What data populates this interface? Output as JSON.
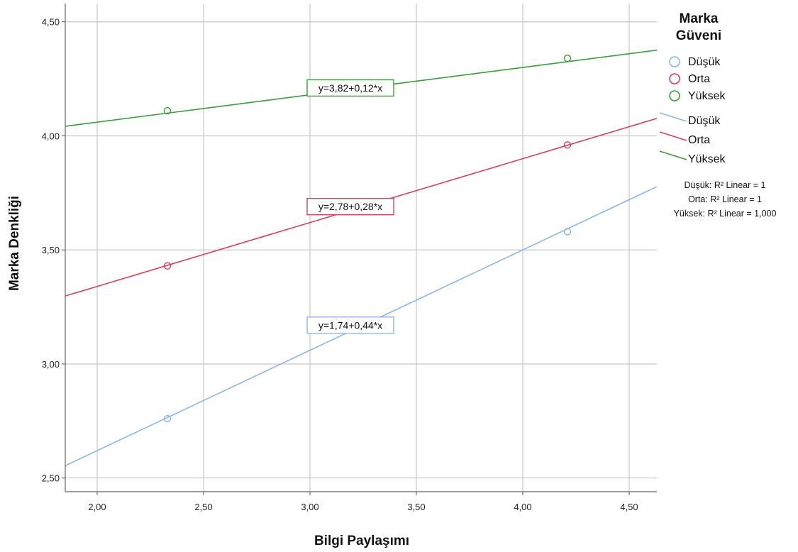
{
  "chart_data": {
    "type": "scatter",
    "xlabel": "Bilgi Paylaşımı",
    "ylabel": "Marka Denkliği",
    "xlim": [
      1.85,
      4.63
    ],
    "ylim": [
      2.44,
      4.58
    ],
    "x_ticks": [
      2.0,
      2.5,
      3.0,
      3.5,
      4.0,
      4.5
    ],
    "x_tick_labels": [
      "2,00",
      "2,50",
      "3,00",
      "3,50",
      "4,00",
      "4,50"
    ],
    "y_ticks": [
      2.5,
      3.0,
      3.5,
      4.0,
      4.5
    ],
    "y_tick_labels": [
      "2,50",
      "3,00",
      "3,50",
      "4,00",
      "4,50"
    ],
    "grid": true,
    "legend_title": [
      "Marka",
      "Güveni"
    ],
    "legend_position": "right",
    "series": [
      {
        "name": "Düşük",
        "color": "#8fb6e4",
        "intercept": 1.74,
        "slope": 0.44,
        "points": [
          {
            "x": 2.33,
            "y": 2.76
          },
          {
            "x": 4.21,
            "y": 3.58
          }
        ],
        "equation": "y=1,74+0,44*x",
        "r2": "Düşük: R² Linear = 1"
      },
      {
        "name": "Orta",
        "color": "#d2415c",
        "intercept": 2.78,
        "slope": 0.28,
        "points": [
          {
            "x": 2.33,
            "y": 3.43
          },
          {
            "x": 4.21,
            "y": 3.96
          }
        ],
        "equation": "y=2,78+0,28*x",
        "r2": "Orta: R² Linear = 1"
      },
      {
        "name": "Yüksek",
        "color": "#3e9a3e",
        "intercept": 3.82,
        "slope": 0.12,
        "points": [
          {
            "x": 2.33,
            "y": 4.11
          },
          {
            "x": 4.21,
            "y": 4.34
          }
        ],
        "equation": "y=3,82+0,12*x",
        "r2": "Yüksek: R² Linear = 1,000"
      }
    ]
  }
}
